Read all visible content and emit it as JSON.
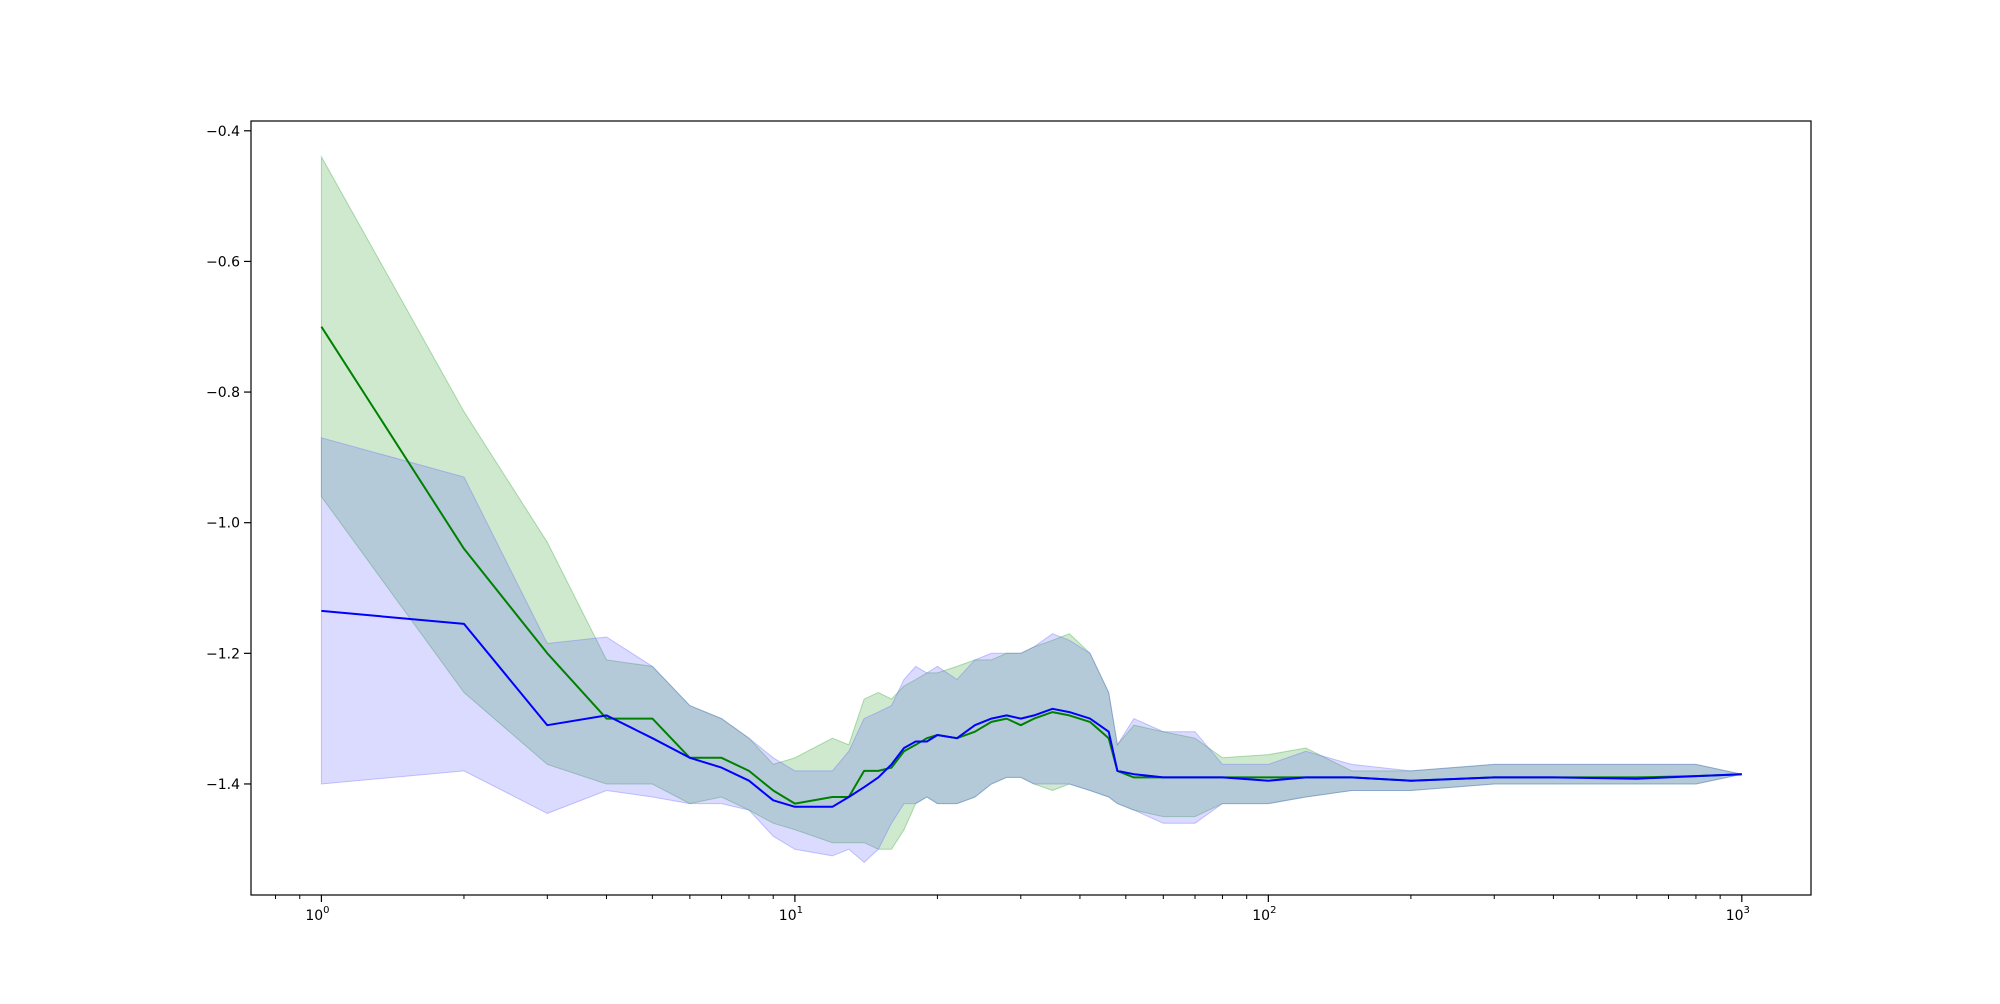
{
  "chart_data": {
    "type": "line",
    "title": "",
    "xlabel": "",
    "ylabel": "",
    "xscale": "log",
    "xlim": [
      0.71,
      1400
    ],
    "ylim": [
      -1.57,
      -0.385
    ],
    "grid": false,
    "x_ticks": [
      {
        "value": 1,
        "base": "10",
        "exp": "0"
      },
      {
        "value": 10,
        "base": "10",
        "exp": "1"
      },
      {
        "value": 100,
        "base": "10",
        "exp": "2"
      },
      {
        "value": 1000,
        "base": "10",
        "exp": "3"
      }
    ],
    "y_ticks": [
      {
        "value": -0.4,
        "label": "−0.4"
      },
      {
        "value": -0.6,
        "label": "−0.6"
      },
      {
        "value": -0.8,
        "label": "−0.8"
      },
      {
        "value": -1.0,
        "label": "−1.0"
      },
      {
        "value": -1.2,
        "label": "−1.2"
      },
      {
        "value": -1.4,
        "label": "−1.4"
      }
    ],
    "series": [
      {
        "color": "#008000",
        "band_color": "#2ca02c",
        "x": [
          1,
          2,
          3,
          4,
          5,
          6,
          7,
          8,
          9,
          10,
          12,
          13,
          14,
          15,
          16,
          17,
          18,
          19,
          20,
          22,
          24,
          26,
          28,
          30,
          32,
          35,
          38,
          42,
          46,
          48,
          52,
          60,
          70,
          80,
          100,
          120,
          150,
          200,
          300,
          400,
          600,
          800,
          1000
        ],
        "y": [
          -0.7,
          -1.04,
          -1.2,
          -1.3,
          -1.3,
          -1.36,
          -1.36,
          -1.38,
          -1.41,
          -1.43,
          -1.42,
          -1.42,
          -1.38,
          -1.38,
          -1.375,
          -1.35,
          -1.34,
          -1.33,
          -1.325,
          -1.33,
          -1.32,
          -1.305,
          -1.3,
          -1.31,
          -1.3,
          -1.29,
          -1.295,
          -1.305,
          -1.33,
          -1.38,
          -1.39,
          -1.39,
          -1.39,
          -1.39,
          -1.39,
          -1.39,
          -1.39,
          -1.395,
          -1.39,
          -1.39,
          -1.39,
          -1.388,
          -1.385
        ],
        "upper": [
          -0.44,
          -0.83,
          -1.03,
          -1.21,
          -1.22,
          -1.28,
          -1.3,
          -1.33,
          -1.37,
          -1.36,
          -1.33,
          -1.34,
          -1.27,
          -1.26,
          -1.27,
          -1.25,
          -1.24,
          -1.23,
          -1.23,
          -1.22,
          -1.21,
          -1.21,
          -1.2,
          -1.2,
          -1.19,
          -1.18,
          -1.17,
          -1.2,
          -1.26,
          -1.34,
          -1.31,
          -1.32,
          -1.33,
          -1.36,
          -1.355,
          -1.345,
          -1.38,
          -1.38,
          -1.37,
          -1.37,
          -1.37,
          -1.37,
          -1.385
        ],
        "lower": [
          -0.96,
          -1.26,
          -1.37,
          -1.4,
          -1.4,
          -1.43,
          -1.42,
          -1.44,
          -1.46,
          -1.47,
          -1.49,
          -1.49,
          -1.49,
          -1.5,
          -1.5,
          -1.47,
          -1.43,
          -1.42,
          -1.43,
          -1.43,
          -1.42,
          -1.4,
          -1.39,
          -1.39,
          -1.4,
          -1.41,
          -1.4,
          -1.41,
          -1.42,
          -1.43,
          -1.44,
          -1.45,
          -1.45,
          -1.43,
          -1.43,
          -1.42,
          -1.41,
          -1.41,
          -1.4,
          -1.4,
          -1.4,
          -1.4,
          -1.385
        ]
      },
      {
        "color": "#0000ff",
        "band_color": "#6464ff",
        "x": [
          1,
          2,
          3,
          4,
          5,
          6,
          7,
          8,
          9,
          10,
          12,
          13,
          14,
          15,
          16,
          17,
          18,
          19,
          20,
          22,
          24,
          26,
          28,
          30,
          32,
          35,
          38,
          42,
          46,
          48,
          52,
          60,
          70,
          80,
          100,
          120,
          150,
          200,
          300,
          400,
          600,
          800,
          1000
        ],
        "y": [
          -1.135,
          -1.155,
          -1.31,
          -1.295,
          -1.33,
          -1.36,
          -1.375,
          -1.395,
          -1.425,
          -1.435,
          -1.435,
          -1.42,
          -1.405,
          -1.39,
          -1.37,
          -1.345,
          -1.335,
          -1.335,
          -1.325,
          -1.33,
          -1.31,
          -1.3,
          -1.295,
          -1.3,
          -1.295,
          -1.285,
          -1.29,
          -1.3,
          -1.32,
          -1.38,
          -1.385,
          -1.39,
          -1.39,
          -1.39,
          -1.395,
          -1.39,
          -1.39,
          -1.395,
          -1.39,
          -1.39,
          -1.392,
          -1.388,
          -1.385
        ],
        "upper": [
          -0.87,
          -0.93,
          -1.185,
          -1.175,
          -1.22,
          -1.28,
          -1.3,
          -1.33,
          -1.36,
          -1.38,
          -1.38,
          -1.35,
          -1.3,
          -1.29,
          -1.28,
          -1.24,
          -1.22,
          -1.23,
          -1.22,
          -1.24,
          -1.21,
          -1.2,
          -1.2,
          -1.2,
          -1.19,
          -1.17,
          -1.18,
          -1.2,
          -1.26,
          -1.34,
          -1.3,
          -1.32,
          -1.32,
          -1.37,
          -1.37,
          -1.35,
          -1.37,
          -1.38,
          -1.37,
          -1.37,
          -1.37,
          -1.37,
          -1.385
        ],
        "lower": [
          -1.4,
          -1.38,
          -1.445,
          -1.41,
          -1.42,
          -1.43,
          -1.43,
          -1.44,
          -1.48,
          -1.5,
          -1.51,
          -1.5,
          -1.52,
          -1.5,
          -1.46,
          -1.43,
          -1.43,
          -1.42,
          -1.43,
          -1.43,
          -1.42,
          -1.4,
          -1.39,
          -1.39,
          -1.4,
          -1.4,
          -1.4,
          -1.41,
          -1.42,
          -1.43,
          -1.44,
          -1.46,
          -1.46,
          -1.43,
          -1.43,
          -1.42,
          -1.41,
          -1.41,
          -1.4,
          -1.4,
          -1.4,
          -1.4,
          -1.385
        ]
      }
    ]
  }
}
